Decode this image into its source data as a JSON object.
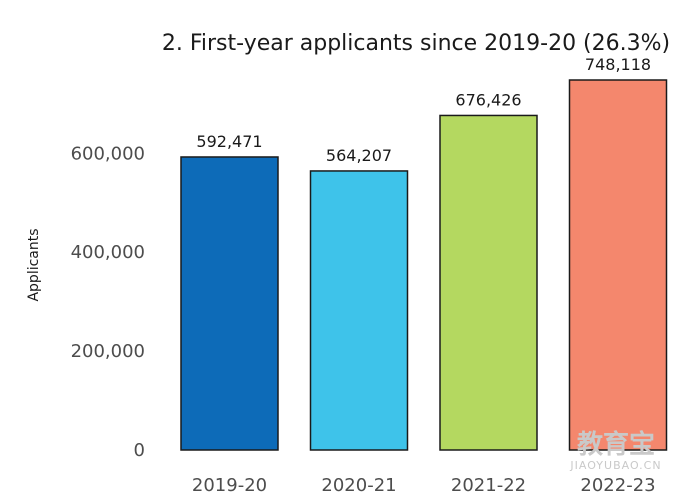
{
  "chart_data": {
    "type": "bar",
    "title": "2. First-year applicants since 2019-20 (26.3%)",
    "xlabel": "",
    "ylabel": "Applicants",
    "categories": [
      "2019-20",
      "2020-21",
      "2021-22",
      "2022-23"
    ],
    "values": [
      592471,
      564207,
      676426,
      748118
    ],
    "value_labels": [
      "592,471",
      "564,207",
      "676,426",
      "748,118"
    ],
    "colors": [
      "#0d6bb8",
      "#3ec3ea",
      "#b4d860",
      "#f4876d"
    ],
    "ylim": [
      0,
      748118
    ],
    "yticks": [
      0,
      200000,
      400000,
      600000
    ],
    "ytick_labels": [
      "0",
      "200,000",
      "400,000",
      "600,000"
    ],
    "grid": false,
    "legend": "none"
  },
  "watermark": {
    "main": "教育宝",
    "sub": "JIAOYUBAO.CN"
  }
}
